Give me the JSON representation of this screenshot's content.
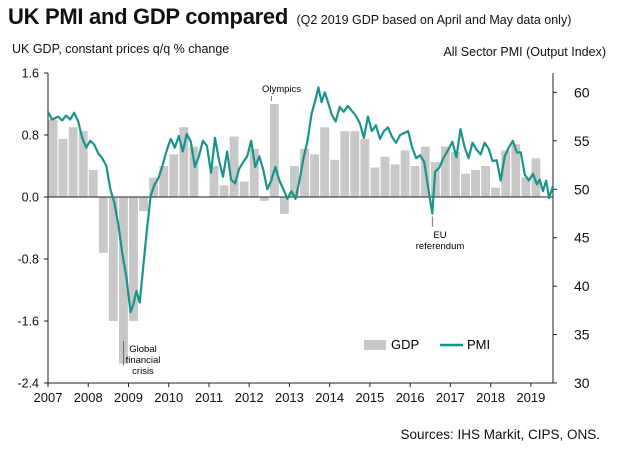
{
  "header": {
    "title": "UK PMI and GDP compared",
    "subtitle": "(Q2 2019 GDP based on April and May data only)",
    "left_axis_title": "UK GDP, constant prices q/q % change",
    "right_axis_title": "All Sector PMI (Output Index)"
  },
  "footer": {
    "source": "Sources: IHS Markit, CIPS, ONS."
  },
  "colors": {
    "gdp_bar": "#c8c8c8",
    "pmi_line": "#1a948b",
    "axis": "#222222"
  },
  "chart_data": {
    "type": "bar+line",
    "x_ticks": [
      "2007",
      "2008",
      "2009",
      "2010",
      "2011",
      "2012",
      "2013",
      "2014",
      "2015",
      "2016",
      "2017",
      "2018",
      "2019"
    ],
    "x_range": [
      2007.0,
      2019.55
    ],
    "left_axis": {
      "ticks": [
        "1.6",
        "0.8",
        "0.0",
        "-0.8",
        "-1.6",
        "-2.4"
      ],
      "range": [
        -2.4,
        1.6
      ]
    },
    "right_axis": {
      "ticks": [
        "60",
        "55",
        "50",
        "45",
        "40",
        "35",
        "30"
      ],
      "range": [
        30,
        62
      ]
    },
    "legend": {
      "gdp": "GDP",
      "pmi": "PMI",
      "position": "bottom-right"
    },
    "annotations": {
      "olympics": "Olympics",
      "gfc_1": "Global",
      "gfc_2": "financial",
      "gfc_3": "crisis",
      "eu_1": "EU",
      "eu_2": "referendum"
    },
    "series": [
      {
        "name": "GDP",
        "kind": "bar",
        "axis": "left",
        "quarters": [
          "2007 Q1",
          "2007 Q2",
          "2007 Q3",
          "2007 Q4",
          "2008 Q1",
          "2008 Q2",
          "2008 Q3",
          "2008 Q4",
          "2009 Q1",
          "2009 Q2",
          "2009 Q3",
          "2009 Q4",
          "2010 Q1",
          "2010 Q2",
          "2010 Q3",
          "2010 Q4",
          "2011 Q1",
          "2011 Q2",
          "2011 Q3",
          "2011 Q4",
          "2012 Q1",
          "2012 Q2",
          "2012 Q3",
          "2012 Q4",
          "2013 Q1",
          "2013 Q2",
          "2013 Q3",
          "2013 Q4",
          "2014 Q1",
          "2014 Q2",
          "2014 Q3",
          "2014 Q4",
          "2015 Q1",
          "2015 Q2",
          "2015 Q3",
          "2015 Q4",
          "2016 Q1",
          "2016 Q2",
          "2016 Q3",
          "2016 Q4",
          "2017 Q1",
          "2017 Q2",
          "2017 Q3",
          "2017 Q4",
          "2018 Q1",
          "2018 Q2",
          "2018 Q3",
          "2018 Q4",
          "2019 Q1",
          "2019 Q2"
        ],
        "values": [
          1.0,
          0.75,
          0.9,
          0.85,
          0.35,
          -0.72,
          -1.6,
          -2.15,
          -1.6,
          -0.18,
          0.25,
          0.4,
          0.55,
          0.9,
          0.65,
          0.0,
          0.4,
          0.15,
          0.78,
          0.2,
          0.62,
          -0.05,
          1.2,
          -0.22,
          0.4,
          0.62,
          0.55,
          0.9,
          0.48,
          0.85,
          0.85,
          0.75,
          0.38,
          0.52,
          0.42,
          0.6,
          0.4,
          0.65,
          0.45,
          0.65,
          0.58,
          0.3,
          0.35,
          0.4,
          0.12,
          0.6,
          0.68,
          0.25,
          0.5,
          0.0
        ]
      },
      {
        "name": "PMI",
        "kind": "line",
        "axis": "right",
        "points": [
          [
            2007.0,
            58.0
          ],
          [
            2007.1,
            57.2
          ],
          [
            2007.25,
            57.5
          ],
          [
            2007.35,
            57.1
          ],
          [
            2007.45,
            57.6
          ],
          [
            2007.55,
            57.2
          ],
          [
            2007.65,
            57.9
          ],
          [
            2007.75,
            57.0
          ],
          [
            2007.85,
            55.3
          ],
          [
            2007.95,
            54.3
          ],
          [
            2008.05,
            55.0
          ],
          [
            2008.15,
            54.6
          ],
          [
            2008.25,
            53.7
          ],
          [
            2008.35,
            53.2
          ],
          [
            2008.45,
            52.4
          ],
          [
            2008.55,
            50.0
          ],
          [
            2008.65,
            48.6
          ],
          [
            2008.75,
            46.3
          ],
          [
            2008.85,
            43.3
          ],
          [
            2008.95,
            40.9
          ],
          [
            2009.05,
            37.3
          ],
          [
            2009.12,
            38.1
          ],
          [
            2009.2,
            39.5
          ],
          [
            2009.28,
            38.3
          ],
          [
            2009.35,
            41.3
          ],
          [
            2009.45,
            45.5
          ],
          [
            2009.55,
            49.3
          ],
          [
            2009.65,
            50.5
          ],
          [
            2009.75,
            51.2
          ],
          [
            2009.85,
            52.5
          ],
          [
            2009.95,
            54.0
          ],
          [
            2010.05,
            55.2
          ],
          [
            2010.15,
            54.3
          ],
          [
            2010.25,
            55.5
          ],
          [
            2010.35,
            53.9
          ],
          [
            2010.45,
            55.7
          ],
          [
            2010.55,
            54.9
          ],
          [
            2010.65,
            52.3
          ],
          [
            2010.75,
            53.4
          ],
          [
            2010.85,
            55.0
          ],
          [
            2010.95,
            54.5
          ],
          [
            2011.05,
            51.7
          ],
          [
            2011.15,
            55.3
          ],
          [
            2011.25,
            53.0
          ],
          [
            2011.35,
            51.3
          ],
          [
            2011.45,
            53.9
          ],
          [
            2011.55,
            51.0
          ],
          [
            2011.65,
            50.6
          ],
          [
            2011.75,
            52.1
          ],
          [
            2011.85,
            52.8
          ],
          [
            2011.95,
            53.4
          ],
          [
            2012.05,
            55.0
          ],
          [
            2012.15,
            52.3
          ],
          [
            2012.25,
            53.4
          ],
          [
            2012.35,
            52.0
          ],
          [
            2012.45,
            50.0
          ],
          [
            2012.55,
            50.9
          ],
          [
            2012.65,
            52.3
          ],
          [
            2012.75,
            50.9
          ],
          [
            2012.85,
            50.0
          ],
          [
            2012.95,
            49.0
          ],
          [
            2013.05,
            49.8
          ],
          [
            2013.15,
            49.0
          ],
          [
            2013.25,
            50.9
          ],
          [
            2013.35,
            53.2
          ],
          [
            2013.45,
            55.0
          ],
          [
            2013.55,
            57.8
          ],
          [
            2013.65,
            59.3
          ],
          [
            2013.72,
            60.5
          ],
          [
            2013.8,
            59.0
          ],
          [
            2013.88,
            60.0
          ],
          [
            2013.95,
            59.1
          ],
          [
            2014.05,
            57.7
          ],
          [
            2014.15,
            57.0
          ],
          [
            2014.25,
            58.5
          ],
          [
            2014.35,
            58.0
          ],
          [
            2014.45,
            58.6
          ],
          [
            2014.55,
            58.1
          ],
          [
            2014.65,
            57.6
          ],
          [
            2014.75,
            56.8
          ],
          [
            2014.85,
            55.3
          ],
          [
            2014.95,
            57.5
          ],
          [
            2015.05,
            56.0
          ],
          [
            2015.15,
            56.6
          ],
          [
            2015.25,
            55.2
          ],
          [
            2015.35,
            56.0
          ],
          [
            2015.45,
            56.4
          ],
          [
            2015.55,
            55.4
          ],
          [
            2015.65,
            54.8
          ],
          [
            2015.75,
            55.6
          ],
          [
            2015.85,
            55.8
          ],
          [
            2015.95,
            56.0
          ],
          [
            2016.05,
            54.3
          ],
          [
            2016.15,
            53.2
          ],
          [
            2016.25,
            53.5
          ],
          [
            2016.35,
            52.8
          ],
          [
            2016.45,
            50.1
          ],
          [
            2016.55,
            47.5
          ],
          [
            2016.62,
            51.8
          ],
          [
            2016.72,
            52.2
          ],
          [
            2016.85,
            53.4
          ],
          [
            2016.95,
            54.1
          ],
          [
            2017.05,
            54.9
          ],
          [
            2017.15,
            53.3
          ],
          [
            2017.25,
            56.2
          ],
          [
            2017.35,
            54.4
          ],
          [
            2017.45,
            53.2
          ],
          [
            2017.55,
            54.8
          ],
          [
            2017.65,
            54.1
          ],
          [
            2017.75,
            53.6
          ],
          [
            2017.85,
            54.8
          ],
          [
            2017.95,
            54.2
          ],
          [
            2018.05,
            52.9
          ],
          [
            2018.15,
            53.0
          ],
          [
            2018.25,
            50.9
          ],
          [
            2018.35,
            53.4
          ],
          [
            2018.45,
            54.3
          ],
          [
            2018.55,
            55.0
          ],
          [
            2018.65,
            53.8
          ],
          [
            2018.75,
            53.8
          ],
          [
            2018.85,
            51.5
          ],
          [
            2018.95,
            50.9
          ],
          [
            2019.05,
            51.6
          ],
          [
            2019.15,
            50.5
          ],
          [
            2019.22,
            51.0
          ],
          [
            2019.3,
            49.8
          ],
          [
            2019.38,
            50.9
          ],
          [
            2019.45,
            49.1
          ],
          [
            2019.55,
            50.3
          ]
        ]
      }
    ]
  }
}
